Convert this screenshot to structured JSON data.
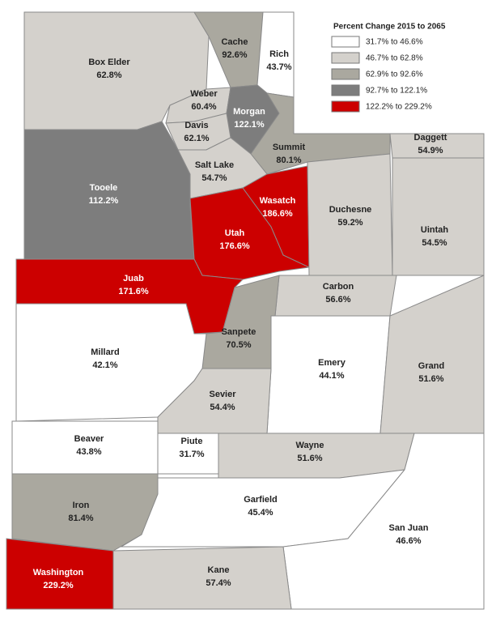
{
  "legend": {
    "title": "Percent Change 2015 to 2065",
    "items": [
      {
        "label": "31.7% to 46.6%",
        "color": "#ffffff"
      },
      {
        "label": "46.7% to 62.8%",
        "color": "#d4d1cc"
      },
      {
        "label": "62.9% to 92.6%",
        "color": "#aaa89f"
      },
      {
        "label": "92.7% to 122.1%",
        "color": "#7d7d7d"
      },
      {
        "label": "122.2% to 229.2%",
        "color": "#cc0000"
      }
    ]
  },
  "counties": [
    {
      "name": "Box Elder",
      "value": "62.8%",
      "tier": 1
    },
    {
      "name": "Cache",
      "value": "92.6%",
      "tier": 2
    },
    {
      "name": "Rich",
      "value": "43.7%",
      "tier": 0
    },
    {
      "name": "Weber",
      "value": "60.4%",
      "tier": 1
    },
    {
      "name": "Morgan",
      "value": "122.1%",
      "tier": 3
    },
    {
      "name": "Davis",
      "value": "62.1%",
      "tier": 1
    },
    {
      "name": "Summit",
      "value": "80.1%",
      "tier": 2
    },
    {
      "name": "Tooele",
      "value": "112.2%",
      "tier": 3
    },
    {
      "name": "Salt Lake",
      "value": "54.7%",
      "tier": 1
    },
    {
      "name": "Wasatch",
      "value": "186.6%",
      "tier": 4
    },
    {
      "name": "Utah",
      "value": "176.6%",
      "tier": 4
    },
    {
      "name": "Juab",
      "value": "171.6%",
      "tier": 4
    },
    {
      "name": "Duchesne",
      "value": "59.2%",
      "tier": 1
    },
    {
      "name": "Daggett",
      "value": "54.9%",
      "tier": 1
    },
    {
      "name": "Uintah",
      "value": "54.5%",
      "tier": 1
    },
    {
      "name": "Carbon",
      "value": "56.6%",
      "tier": 1
    },
    {
      "name": "Sanpete",
      "value": "70.5%",
      "tier": 2
    },
    {
      "name": "Millard",
      "value": "42.1%",
      "tier": 0
    },
    {
      "name": "Emery",
      "value": "44.1%",
      "tier": 0
    },
    {
      "name": "Grand",
      "value": "51.6%",
      "tier": 1
    },
    {
      "name": "Sevier",
      "value": "54.4%",
      "tier": 1
    },
    {
      "name": "Beaver",
      "value": "43.8%",
      "tier": 0
    },
    {
      "name": "Piute",
      "value": "31.7%",
      "tier": 0
    },
    {
      "name": "Wayne",
      "value": "51.6%",
      "tier": 1
    },
    {
      "name": "Iron",
      "value": "81.4%",
      "tier": 2
    },
    {
      "name": "Garfield",
      "value": "45.4%",
      "tier": 0
    },
    {
      "name": "San Juan",
      "value": "46.6%",
      "tier": 0
    },
    {
      "name": "Washington",
      "value": "229.2%",
      "tier": 4
    },
    {
      "name": "Kane",
      "value": "57.4%",
      "tier": 1
    }
  ]
}
